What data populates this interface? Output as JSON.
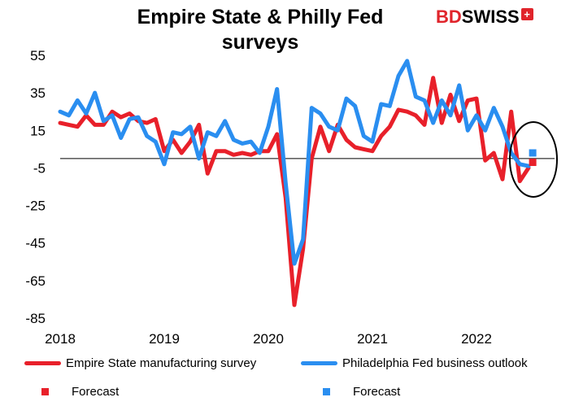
{
  "title": "Empire State & Philly Fed surveys",
  "logo": {
    "part1": "BD",
    "part2": "SWISS",
    "mark": "+"
  },
  "colors": {
    "empire": "#e8202a",
    "philly": "#2a8ef0"
  },
  "chart_data": {
    "type": "line",
    "title": "Empire State & Philly Fed surveys",
    "y_ticks": [
      55,
      35,
      15,
      -5,
      -25,
      -45,
      -65,
      -85
    ],
    "ylim": [
      -85,
      55
    ],
    "x_ticks": [
      "2018",
      "2019",
      "2020",
      "2021",
      "2022"
    ],
    "xlim": [
      2018.0,
      2022.75
    ],
    "baseline": 0,
    "annotation": "circle around forecast points",
    "series": [
      {
        "name": "Empire State manufacturing survey",
        "color": "#e8202a",
        "start": 2018.0,
        "step_months": 1,
        "values": [
          19,
          18,
          17,
          23,
          18,
          18,
          25,
          22,
          24,
          20,
          19,
          21,
          4,
          10,
          3,
          9,
          18,
          -8,
          4,
          4,
          2,
          3,
          2,
          4,
          4,
          13,
          -21,
          -78,
          -48,
          0,
          17,
          4,
          18,
          10,
          6,
          5,
          4,
          12,
          17,
          26,
          25,
          23,
          18,
          43,
          19,
          34,
          20,
          31,
          32,
          -1,
          3,
          -11,
          25,
          -12,
          -5
        ]
      },
      {
        "name": "Philadelphia Fed business outlook",
        "color": "#2a8ef0",
        "start": 2018.0,
        "step_months": 1,
        "values": [
          25,
          23,
          31,
          24,
          35,
          20,
          23,
          11,
          21,
          22,
          12,
          9,
          -3,
          14,
          13,
          17,
          0,
          14,
          12,
          20,
          10,
          8,
          9,
          3,
          17,
          37,
          -13,
          -56,
          -43,
          27,
          24,
          17,
          15,
          32,
          28,
          12,
          9,
          29,
          28,
          44,
          52,
          33,
          31,
          19,
          31,
          23,
          39,
          15,
          23,
          15,
          27,
          17,
          3,
          -3,
          -4
        ]
      },
      {
        "name": "Forecast",
        "color": "#e8202a",
        "marker": "square",
        "points": [
          {
            "x": 2022.54,
            "y": -2
          }
        ]
      },
      {
        "name": "Forecast",
        "color": "#2a8ef0",
        "marker": "square",
        "points": [
          {
            "x": 2022.54,
            "y": 3
          }
        ]
      }
    ]
  },
  "legend": {
    "empire": "Empire State manufacturing survey",
    "philly": "Philadelphia Fed business outlook",
    "forecast_red": "Forecast",
    "forecast_blue": "Forecast"
  }
}
